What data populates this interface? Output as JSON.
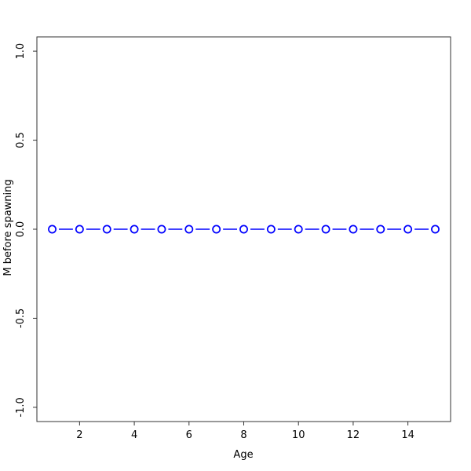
{
  "chart_data": {
    "type": "line",
    "title": "",
    "xlabel": "Age",
    "ylabel": "M before spawning",
    "series": [
      {
        "name": "M before spawning",
        "x": [
          1,
          2,
          3,
          4,
          5,
          6,
          7,
          8,
          9,
          10,
          11,
          12,
          13,
          14,
          15
        ],
        "y": [
          0,
          0,
          0,
          0,
          0,
          0,
          0,
          0,
          0,
          0,
          0,
          0,
          0,
          0,
          0
        ],
        "marker": "open-circle",
        "line_style": "solid",
        "connect_style": "segments-with-gaps",
        "color": "#0000FF"
      }
    ],
    "xlim": [
      1,
      15
    ],
    "ylim": [
      -1,
      1
    ],
    "xticks": [
      2,
      4,
      6,
      8,
      10,
      12,
      14
    ],
    "xtick_labels": [
      "2",
      "4",
      "6",
      "8",
      "10",
      "12",
      "14"
    ],
    "yticks": [
      -1.0,
      -0.5,
      0.0,
      0.5,
      1.0
    ],
    "ytick_labels": [
      "-1.0",
      "-0.5",
      "0.0",
      "0.5",
      "1.0"
    ],
    "grid": false,
    "legend": "none",
    "box": "full-frame",
    "colors": {
      "background": "#FFFFFF",
      "frame": "#333333",
      "tick": "#333333",
      "text": "#000000",
      "series": "#0000FF",
      "marker_fill": "#FFFFFF"
    }
  }
}
